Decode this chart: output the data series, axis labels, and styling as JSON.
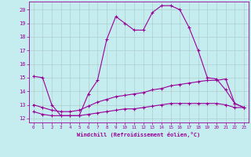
{
  "xlabel": "Windchill (Refroidissement éolien,°C)",
  "bg_color": "#c5ecee",
  "line_color": "#990099",
  "grid_color": "#b0cece",
  "xlim": [
    -0.5,
    23.5
  ],
  "ylim": [
    11.7,
    20.6
  ],
  "yticks": [
    12,
    13,
    14,
    15,
    16,
    17,
    18,
    19,
    20
  ],
  "xticks": [
    0,
    1,
    2,
    3,
    4,
    5,
    6,
    7,
    8,
    9,
    10,
    11,
    12,
    13,
    14,
    15,
    16,
    17,
    18,
    19,
    20,
    21,
    22,
    23
  ],
  "line1_x": [
    0,
    1,
    2,
    3,
    4,
    5,
    6,
    7,
    8,
    9,
    10,
    11,
    12,
    13,
    14,
    15,
    16,
    17,
    18,
    19,
    20,
    21,
    22,
    23
  ],
  "line1_y": [
    15.1,
    15.0,
    13.0,
    12.2,
    12.2,
    12.2,
    13.8,
    14.8,
    17.8,
    19.5,
    19.0,
    18.5,
    18.5,
    19.8,
    20.3,
    20.3,
    20.0,
    18.7,
    17.0,
    15.0,
    14.9,
    14.1,
    13.1,
    12.8
  ],
  "line2_x": [
    0,
    1,
    2,
    3,
    4,
    5,
    6,
    7,
    8,
    9,
    10,
    11,
    12,
    13,
    14,
    15,
    16,
    17,
    18,
    19,
    20,
    21,
    22,
    23
  ],
  "line2_y": [
    13.0,
    12.8,
    12.6,
    12.5,
    12.5,
    12.6,
    12.9,
    13.2,
    13.4,
    13.6,
    13.7,
    13.8,
    13.9,
    14.1,
    14.2,
    14.4,
    14.5,
    14.6,
    14.7,
    14.8,
    14.8,
    14.9,
    13.1,
    12.8
  ],
  "line3_x": [
    0,
    1,
    2,
    3,
    4,
    5,
    6,
    7,
    8,
    9,
    10,
    11,
    12,
    13,
    14,
    15,
    16,
    17,
    18,
    19,
    20,
    21,
    22,
    23
  ],
  "line3_y": [
    12.5,
    12.3,
    12.2,
    12.2,
    12.2,
    12.2,
    12.3,
    12.4,
    12.5,
    12.6,
    12.7,
    12.7,
    12.8,
    12.9,
    13.0,
    13.1,
    13.1,
    13.1,
    13.1,
    13.1,
    13.1,
    13.0,
    12.8,
    12.8
  ]
}
